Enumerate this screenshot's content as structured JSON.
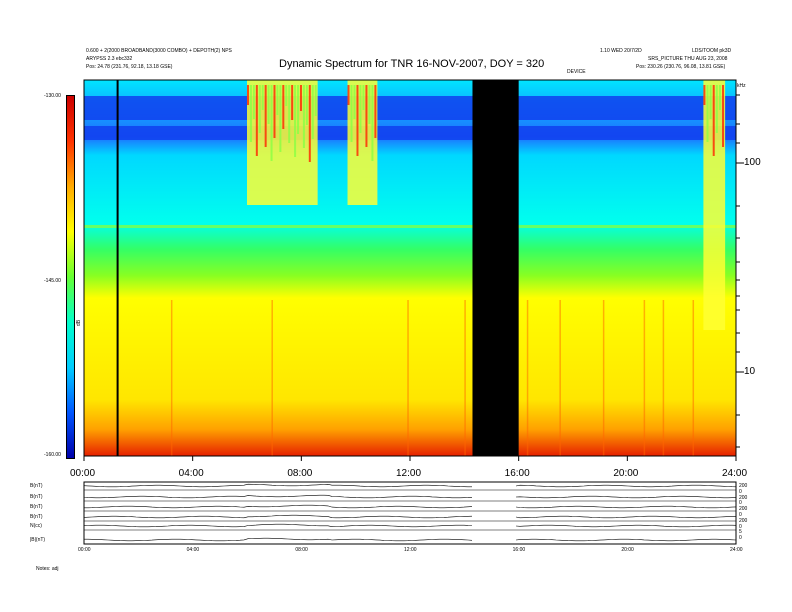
{
  "header": {
    "title": "Dynamic Spectrum for TNR 16-NOV-2007, DOY = 320",
    "left_line1": "0.600 + 2(2000 BROADBAND(3000 COMBO) + DEPOTH(2) NPS",
    "left_line2": "ARYPSS 2.3 ebc332",
    "left_line3": "Pos: 24.78 (231.76, 92.18, 13.18 GSE)",
    "right_line1": "1.10 WED 20/7/2D",
    "right_line2": "LDS/TOOM pk3D",
    "right_line3": "SRS_PICTURE THU AUG 23, 2008",
    "right_line4": "Pos: 230.26 (230.76, 96.08, 13.81 GSE)",
    "right_mid": "DEVICE",
    "khz_unit": "kHz"
  },
  "colorbar": {
    "label": "dB",
    "ticks": [
      "-130.00",
      "-145.00",
      "-160.00"
    ],
    "stops": [
      "#0000aa",
      "#0055ff",
      "#00ccff",
      "#00ffcc",
      "#66ff33",
      "#ffff00",
      "#ffaa00",
      "#ff3300",
      "#cc0000"
    ]
  },
  "chart_data": {
    "type": "heatmap",
    "title": "Dynamic Spectrum for TNR 16-NOV-2007, DOY = 320",
    "x_ticks": [
      "00:00",
      "04:00",
      "08:00",
      "12:00",
      "16:00",
      "20:00",
      "24:00"
    ],
    "x_range_hours": [
      0,
      24
    ],
    "y_ticks": [
      "100",
      "10"
    ],
    "y_scale": "log",
    "y_unit": "kHz",
    "color_range_db": [
      -160,
      -130
    ],
    "color_ticks": [
      -130,
      -145,
      -160
    ],
    "data_gap_hours": [
      14.3,
      16.0
    ],
    "notable_features": [
      {
        "name": "type III bursts",
        "start_hour": 6.0,
        "end_hour": 8.6
      },
      {
        "name": "type III bursts",
        "start_hour": 9.7,
        "end_hour": 10.8
      },
      {
        "name": "intense emission",
        "start_hour": 22.8,
        "end_hour": 23.6
      }
    ]
  },
  "bottom_panels": {
    "labels": [
      "B(nT)",
      "B(nT)",
      "B(nT)",
      "B(nT)",
      "N(cc)",
      "|B|(nT)"
    ],
    "x_ticks": [
      "00:00",
      "04:00",
      "08:00",
      "12:00",
      "16:00",
      "20:00",
      "24:00"
    ],
    "right_ticks": [
      "200",
      "0",
      "200",
      "0",
      "200",
      "0",
      "200",
      "0",
      "5",
      "0"
    ],
    "footer": "Notes: adj"
  }
}
